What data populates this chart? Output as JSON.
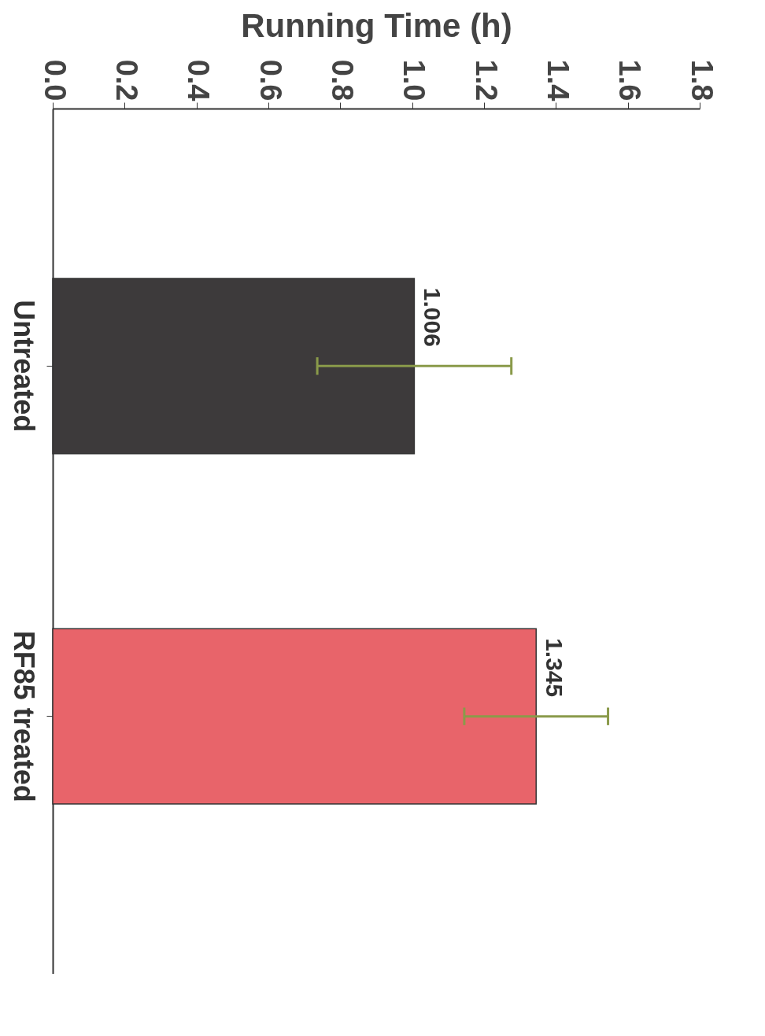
{
  "chart_data": {
    "type": "bar",
    "orientation": "horizontal",
    "xlabel": "Running Time (h)",
    "categories": [
      "Untreated",
      "RF85 treated"
    ],
    "values": [
      1.006,
      1.345
    ],
    "colors": [
      "#3d3a3b",
      "#e8646a"
    ],
    "errors": [
      0.27,
      0.2
    ],
    "data_labels": true,
    "xlim": [
      0,
      1.8
    ],
    "xticks": [
      {
        "value": 0,
        "label": "0.0"
      },
      {
        "value": 0.2,
        "label": "0.2"
      },
      {
        "value": 0.4,
        "label": "0.4"
      },
      {
        "value": 0.6,
        "label": "0.6"
      },
      {
        "value": 0.8,
        "label": "0.8"
      },
      {
        "value": 1,
        "label": "1.0"
      },
      {
        "value": 1.2,
        "label": "1.2"
      },
      {
        "value": 1.4,
        "label": "1.4"
      },
      {
        "value": 1.6,
        "label": "1.6"
      },
      {
        "value": 1.8,
        "label": "1.8"
      }
    ],
    "grid": false,
    "legend": false
  }
}
